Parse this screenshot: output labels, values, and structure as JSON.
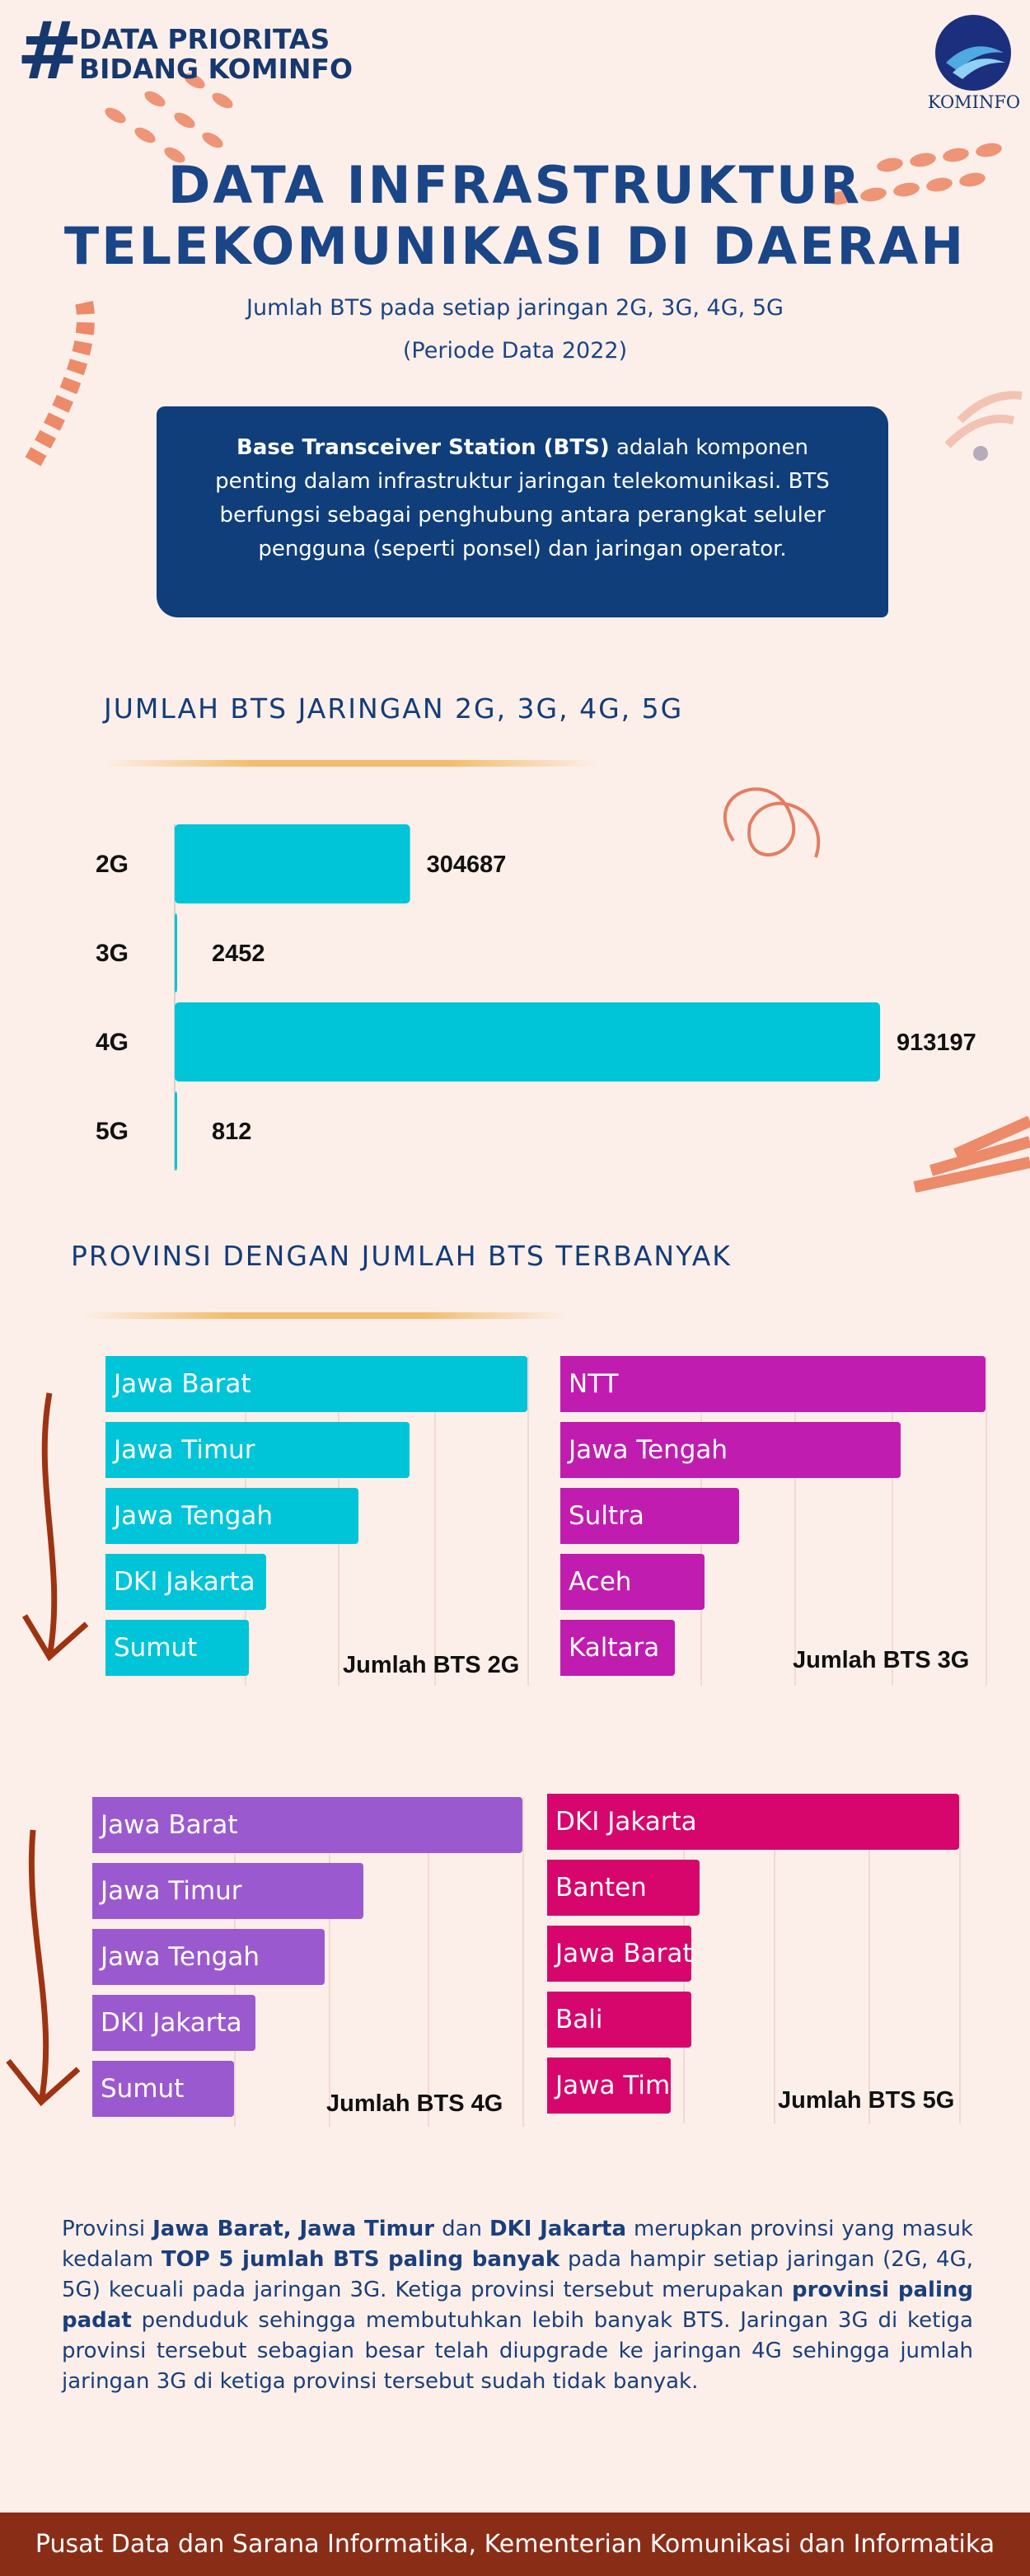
{
  "header": {
    "hash": "#",
    "tag_line1": "DATA PRIORITAS",
    "tag_line2": "BIDANG KOMINFO",
    "logo_text": "KOMINFO"
  },
  "title_line1": "DATA INFRASTRUKTUR",
  "title_line2": "TELEKOMUNIKASI DI DAERAH",
  "subtitle_line1": "Jumlah BTS pada setiap jaringan 2G, 3G, 4G, 5G",
  "subtitle_line2": "(Periode Data 2022)",
  "info_box": {
    "bold_term": "Base Transceiver Station (BTS)",
    "text": " adalah komponen penting dalam infrastruktur jaringan telekomunikasi. BTS berfungsi sebagai penghubung antara perangkat seluler pengguna (seperti ponsel) dan jaringan operator."
  },
  "section1_title": "JUMLAH BTS JARINGAN 2G, 3G, 4G, 5G",
  "section2_title": "PROVINSI DENGAN JUMLAH BTS TERBANYAK",
  "colors": {
    "bts2g": "#00c4d8",
    "bts3g": "#c01cb0",
    "bts4g": "#9b59cf",
    "bts5g": "#d6066c",
    "navy": "#0f3e7a",
    "footer": "#8a2d17"
  },
  "chart_data": [
    {
      "type": "bar",
      "orientation": "horizontal",
      "title": "JUMLAH BTS JARINGAN 2G, 3G, 4G, 5G",
      "categories": [
        "2G",
        "3G",
        "4G",
        "5G"
      ],
      "values": [
        304687,
        2452,
        913197,
        812
      ],
      "value_labels": [
        "304687",
        "2452",
        "913197",
        "812"
      ],
      "xlim": [
        0,
        913197
      ],
      "grid": false
    },
    {
      "type": "bar",
      "orientation": "horizontal",
      "title": "Jumlah BTS 2G",
      "categories": [
        "Jawa Barat",
        "Jawa Timur",
        "Jawa Tengah",
        "DKI Jakarta",
        "Sumut"
      ],
      "values": [
        1.0,
        0.72,
        0.6,
        0.38,
        0.34
      ],
      "xlim": [
        0,
        1.0
      ],
      "grid": true
    },
    {
      "type": "bar",
      "orientation": "horizontal",
      "title": "Jumlah BTS 3G",
      "categories": [
        "NTT",
        "Jawa Tengah",
        "Sultra",
        "Aceh",
        "Kaltara"
      ],
      "values": [
        1.0,
        0.8,
        0.42,
        0.34,
        0.27
      ],
      "xlim": [
        0,
        1.0
      ],
      "grid": true
    },
    {
      "type": "bar",
      "orientation": "horizontal",
      "title": "Jumlah BTS 4G",
      "categories": [
        "Jawa Barat",
        "Jawa Timur",
        "Jawa Tengah",
        "DKI Jakarta",
        "Sumut"
      ],
      "values": [
        1.0,
        0.63,
        0.54,
        0.38,
        0.33
      ],
      "xlim": [
        0,
        1.0
      ],
      "grid": true
    },
    {
      "type": "bar",
      "orientation": "horizontal",
      "title": "Jumlah BTS 5G",
      "categories": [
        "DKI Jakarta",
        "Banten",
        "Jawa Barat",
        "Bali",
        "Jawa Tim"
      ],
      "values": [
        1.0,
        0.37,
        0.35,
        0.35,
        0.3
      ],
      "xlim": [
        0,
        1.0
      ],
      "grid": true
    }
  ],
  "summary": {
    "p1": "Provinsi ",
    "b1": "Jawa Barat, Jawa Timur",
    "p2": " dan ",
    "b2": "DKI Jakarta",
    "p3": " merupkan provinsi yang masuk kedalam ",
    "b3": "TOP 5 jumlah BTS paling banyak",
    "p4": " pada hampir setiap jaringan (2G, 4G, 5G) kecuali pada jaringan 3G. Ketiga provinsi tersebut merupakan ",
    "b4": "provinsi paling padat",
    "p5": " penduduk sehingga membutuhkan lebih banyak BTS. Jaringan 3G di ketiga provinsi tersebut sebagian besar telah diupgrade ke jaringan 4G sehingga jumlah jaringan 3G di ketiga provinsi tersebut sudah tidak banyak."
  },
  "footer": "Pusat Data dan Sarana Informatika, Kementerian Komunikasi dan Informatika"
}
